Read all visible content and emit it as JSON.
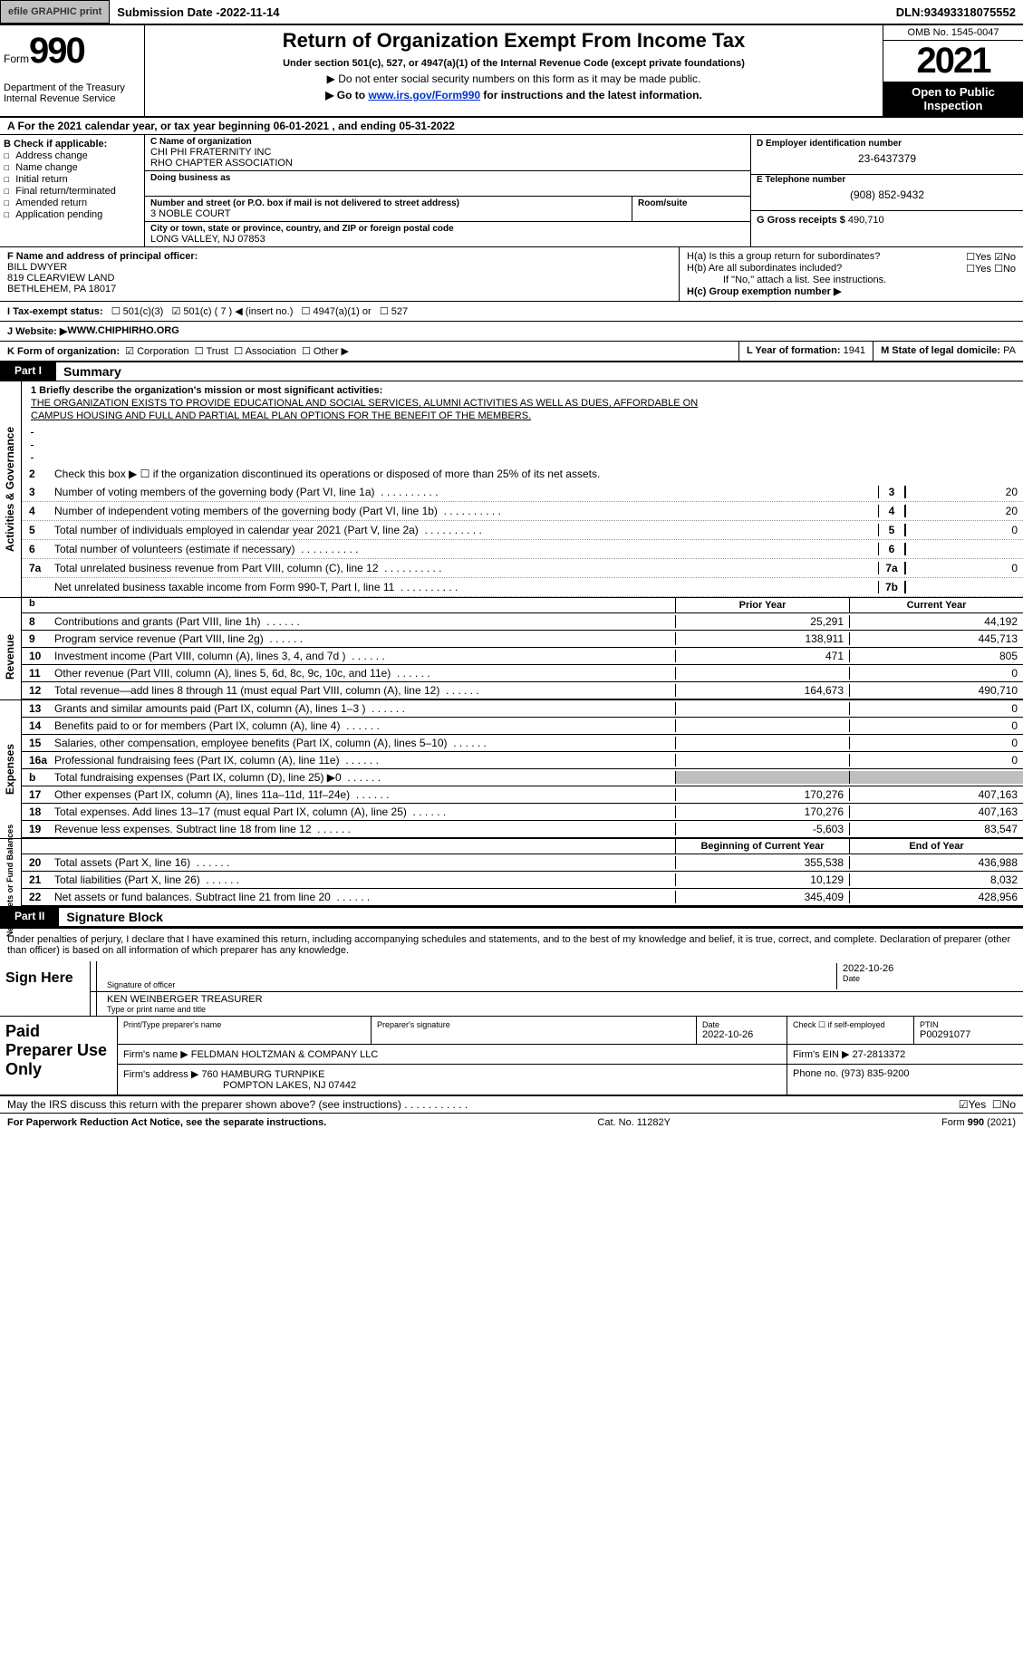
{
  "topbar": {
    "graphic_btn": "efile GRAPHIC print",
    "sub_date_label": "Submission Date - ",
    "sub_date": "2022-11-14",
    "dln_label": "DLN: ",
    "dln": "93493318075552"
  },
  "header": {
    "form_prefix": "Form",
    "form_no": "990",
    "dept1": "Department of the Treasury",
    "dept2": "Internal Revenue Service",
    "title": "Return of Organization Exempt From Income Tax",
    "sub1": "Under section 501(c), 527, or 4947(a)(1) of the Internal Revenue Code (except private foundations)",
    "sub2": "▶ Do not enter social security numbers on this form as it may be made public.",
    "goto_pre": "▶ Go to ",
    "goto_link": "www.irs.gov/Form990",
    "goto_post": " for instructions and the latest information.",
    "omb": "OMB No. 1545-0047",
    "year": "2021",
    "open": "Open to Public Inspection"
  },
  "a_row": {
    "text_pre": "A For the 2021 calendar year, or tax year beginning ",
    "begin": "06-01-2021",
    "mid": "   , and ending ",
    "end": "05-31-2022"
  },
  "blk_b": {
    "check_label": "B Check if applicable:",
    "checks": [
      "Address change",
      "Name change",
      "Initial return",
      "Final return/terminated",
      "Amended return",
      "Application pending"
    ],
    "name_lbl": "C Name of organization",
    "name1": "CHI PHI FRATERNITY INC",
    "name2": "RHO CHAPTER ASSOCIATION",
    "dba_lbl": "Doing business as",
    "dba": "",
    "street_lbl": "Number and street (or P.O. box if mail is not delivered to street address)",
    "street": "3 NOBLE COURT",
    "room_lbl": "Room/suite",
    "city_lbl": "City or town, state or province, country, and ZIP or foreign postal code",
    "city": "LONG VALLEY, NJ  07853",
    "ein_lbl": "D Employer identification number",
    "ein": "23-6437379",
    "tel_lbl": "E Telephone number",
    "tel": "(908) 852-9432",
    "gross_lbl": "G Gross receipts $ ",
    "gross": "490,710"
  },
  "blk_f": {
    "name_lbl": "F  Name and address of principal officer:",
    "name": "BILL DWYER",
    "addr1": "819 CLEARVIEW LAND",
    "addr2": "BETHLEHEM, PA  18017",
    "ha_lbl": "H(a)  Is this a group return for subordinates?",
    "ha_yes": "Yes",
    "ha_no": "No",
    "hb_lbl": "H(b)  Are all subordinates included?",
    "hb_yes": "Yes",
    "hb_no": "No",
    "hb_note": "If \"No,\" attach a list. See instructions.",
    "hc_lbl": "H(c)  Group exemption number ▶"
  },
  "i_row": {
    "lbl": "I  Tax-exempt status:",
    "c3": "501(c)(3)",
    "c7_pre": "501(c) ( ",
    "c7_num": "7",
    "c7_post": " ) ◀ (insert no.)",
    "c4947": "4947(a)(1) or",
    "c527": "527"
  },
  "j_row": {
    "lbl": "J  Website: ▶ ",
    "val": "WWW.CHIPHIRHO.ORG"
  },
  "k_row": {
    "lbl": "K Form of organization:",
    "opts": [
      "Corporation",
      "Trust",
      "Association",
      "Other ▶"
    ],
    "year_lbl": "L Year of formation: ",
    "year": "1941",
    "state_lbl": "M State of legal domicile: ",
    "state": "PA"
  },
  "part1": {
    "tab": "Part I",
    "title": "Summary",
    "brief_lbl": "1  Briefly describe the organization's mission or most significant activities:",
    "brief1": "THE ORGANIZATION EXISTS TO PROVIDE EDUCATIONAL AND SOCIAL SERVICES, ALUMNI ACTIVITIES AS WELL AS DUES, AFFORDABLE ON",
    "brief2": "CAMPUS HOUSING AND FULL AND PARTIAL MEAL PLAN OPTIONS FOR THE BENEFIT OF THE MEMBERS.",
    "l2": "Check this box ▶ ☐ if the organization discontinued its operations or disposed of more than 25% of its net assets.",
    "vtab1": "Activities & Governance",
    "lines_ag": [
      {
        "n": "3",
        "d": "Number of voting members of the governing body (Part VI, line 1a)",
        "box": "3",
        "v": "20"
      },
      {
        "n": "4",
        "d": "Number of independent voting members of the governing body (Part VI, line 1b)",
        "box": "4",
        "v": "20"
      },
      {
        "n": "5",
        "d": "Total number of individuals employed in calendar year 2021 (Part V, line 2a)",
        "box": "5",
        "v": "0"
      },
      {
        "n": "6",
        "d": "Total number of volunteers (estimate if necessary)",
        "box": "6",
        "v": ""
      },
      {
        "n": "7a",
        "d": "Total unrelated business revenue from Part VIII, column (C), line 12",
        "box": "7a",
        "v": "0"
      },
      {
        "n": "",
        "d": "Net unrelated business taxable income from Form 990-T, Part I, line 11",
        "box": "7b",
        "v": ""
      }
    ],
    "col_heads": {
      "b": "b",
      "prior": "Prior Year",
      "cur": "Current Year"
    },
    "vtab2": "Revenue",
    "rev": [
      {
        "n": "8",
        "d": "Contributions and grants (Part VIII, line 1h)",
        "p": "25,291",
        "c": "44,192"
      },
      {
        "n": "9",
        "d": "Program service revenue (Part VIII, line 2g)",
        "p": "138,911",
        "c": "445,713"
      },
      {
        "n": "10",
        "d": "Investment income (Part VIII, column (A), lines 3, 4, and 7d )",
        "p": "471",
        "c": "805"
      },
      {
        "n": "11",
        "d": "Other revenue (Part VIII, column (A), lines 5, 6d, 8c, 9c, 10c, and 11e)",
        "p": "",
        "c": "0"
      },
      {
        "n": "12",
        "d": "Total revenue—add lines 8 through 11 (must equal Part VIII, column (A), line 12)",
        "p": "164,673",
        "c": "490,710"
      }
    ],
    "vtab3": "Expenses",
    "exp": [
      {
        "n": "13",
        "d": "Grants and similar amounts paid (Part IX, column (A), lines 1–3 )",
        "p": "",
        "c": "0"
      },
      {
        "n": "14",
        "d": "Benefits paid to or for members (Part IX, column (A), line 4)",
        "p": "",
        "c": "0"
      },
      {
        "n": "15",
        "d": "Salaries, other compensation, employee benefits (Part IX, column (A), lines 5–10)",
        "p": "",
        "c": "0"
      },
      {
        "n": "16a",
        "d": "Professional fundraising fees (Part IX, column (A), line 11e)",
        "p": "",
        "c": "0"
      },
      {
        "n": "b",
        "d": "Total fundraising expenses (Part IX, column (D), line 25) ▶0",
        "p": "GREY",
        "c": "GREY"
      },
      {
        "n": "17",
        "d": "Other expenses (Part IX, column (A), lines 11a–11d, 11f–24e)",
        "p": "170,276",
        "c": "407,163"
      },
      {
        "n": "18",
        "d": "Total expenses. Add lines 13–17 (must equal Part IX, column (A), line 25)",
        "p": "170,276",
        "c": "407,163"
      },
      {
        "n": "19",
        "d": "Revenue less expenses. Subtract line 18 from line 12",
        "p": "-5,603",
        "c": "83,547"
      }
    ],
    "col_heads2": {
      "prior": "Beginning of Current Year",
      "cur": "End of Year"
    },
    "vtab4": "Net Assets or Fund Balances",
    "net": [
      {
        "n": "20",
        "d": "Total assets (Part X, line 16)",
        "p": "355,538",
        "c": "436,988"
      },
      {
        "n": "21",
        "d": "Total liabilities (Part X, line 26)",
        "p": "10,129",
        "c": "8,032"
      },
      {
        "n": "22",
        "d": "Net assets or fund balances. Subtract line 21 from line 20",
        "p": "345,409",
        "c": "428,956"
      }
    ]
  },
  "part2": {
    "tab": "Part II",
    "title": "Signature Block",
    "decl": "Under penalties of perjury, I declare that I have examined this return, including accompanying schedules and statements, and to the best of my knowledge and belief, it is true, correct, and complete. Declaration of preparer (other than officer) is based on all information of which preparer has any knowledge.",
    "sign_here": "Sign Here",
    "sig_lbl": "Signature of officer",
    "sig_date_lbl": "Date",
    "sig_date": "2022-10-26",
    "name_title": "KEN WEINBERGER  TREASURER",
    "name_title_lbl": "Type or print name and title",
    "paid": "Paid Preparer Use Only",
    "pp_name_lbl": "Print/Type preparer's name",
    "pp_sig_lbl": "Preparer's signature",
    "pp_date_lbl": "Date",
    "pp_date": "2022-10-26",
    "pp_chk_lbl": "Check ☐ if self-employed",
    "pp_ptin_lbl": "PTIN",
    "pp_ptin": "P00291077",
    "firm_name_lbl": "Firm's name      ▶ ",
    "firm_name": "FELDMAN HOLTZMAN & COMPANY LLC",
    "firm_ein_lbl": "Firm's EIN ▶ ",
    "firm_ein": "27-2813372",
    "firm_addr_lbl": "Firm's address ▶ ",
    "firm_addr1": "760 HAMBURG TURNPIKE",
    "firm_addr2": "POMPTON LAKES, NJ  07442",
    "phone_lbl": "Phone no. ",
    "phone": "(973) 835-9200",
    "may": "May the IRS discuss this return with the preparer shown above? (see instructions)",
    "may_yes": "Yes",
    "may_no": "No"
  },
  "footer": {
    "left": "For Paperwork Reduction Act Notice, see the separate instructions.",
    "mid": "Cat. No. 11282Y",
    "right": "Form 990 (2021)"
  }
}
